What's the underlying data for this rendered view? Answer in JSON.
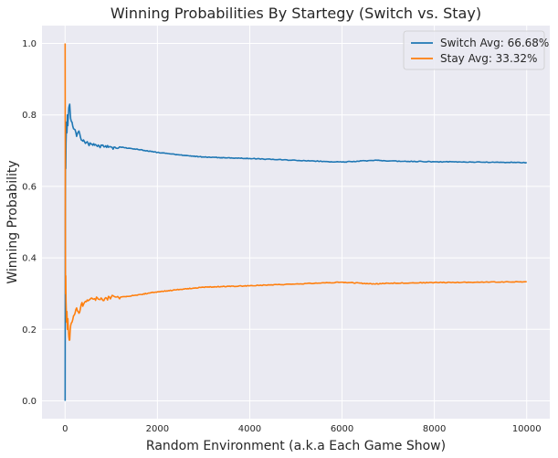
{
  "chart_data": {
    "type": "line",
    "title": "Winning Probabilities By Startegy (Switch vs. Stay)",
    "xlabel": "Random Environment (a.k.a Each Game Show)",
    "ylabel": "Winning Probability",
    "xlim": [
      -500,
      10500
    ],
    "ylim": [
      -0.05,
      1.05
    ],
    "xticks": [
      0,
      2000,
      4000,
      6000,
      8000,
      10000
    ],
    "yticks": [
      0.0,
      0.2,
      0.4,
      0.6,
      0.8,
      1.0
    ],
    "xtick_labels": [
      "0",
      "2000",
      "4000",
      "6000",
      "8000",
      "10000"
    ],
    "ytick_labels": [
      "0.0",
      "0.2",
      "0.4",
      "0.6",
      "0.8",
      "1.0"
    ],
    "grid": true,
    "legend_position": "top-right",
    "background_color": "#eaeaf2",
    "series": [
      {
        "name": "Switch Avg:  66.68%",
        "color": "#1f77b4",
        "x": [
          1,
          5,
          10,
          15,
          20,
          30,
          40,
          50,
          60,
          80,
          100,
          120,
          150,
          200,
          250,
          300,
          350,
          400,
          500,
          600,
          700,
          800,
          1000,
          1200,
          1500,
          2000,
          2500,
          3000,
          3500,
          4000,
          5000,
          6000,
          6700,
          7000,
          8000,
          9000,
          10000
        ],
        "y": [
          0.0,
          0.5,
          0.7,
          0.65,
          0.72,
          0.78,
          0.75,
          0.8,
          0.77,
          0.82,
          0.83,
          0.79,
          0.78,
          0.76,
          0.74,
          0.755,
          0.73,
          0.73,
          0.72,
          0.715,
          0.712,
          0.715,
          0.71,
          0.71,
          0.705,
          0.695,
          0.688,
          0.682,
          0.68,
          0.678,
          0.673,
          0.668,
          0.673,
          0.671,
          0.669,
          0.668,
          0.6668
        ]
      },
      {
        "name": "Stay Avg:  33.32%",
        "color": "#ff7f0e",
        "x": [
          1,
          5,
          10,
          15,
          20,
          30,
          40,
          50,
          60,
          80,
          100,
          120,
          150,
          200,
          250,
          300,
          350,
          400,
          500,
          600,
          700,
          800,
          1000,
          1200,
          1500,
          2000,
          2500,
          3000,
          3500,
          4000,
          5000,
          6000,
          6700,
          7000,
          8000,
          9000,
          10000
        ],
        "y": [
          1.0,
          0.5,
          0.3,
          0.35,
          0.28,
          0.22,
          0.25,
          0.2,
          0.23,
          0.18,
          0.17,
          0.21,
          0.22,
          0.24,
          0.26,
          0.245,
          0.27,
          0.27,
          0.28,
          0.285,
          0.288,
          0.285,
          0.29,
          0.29,
          0.295,
          0.305,
          0.312,
          0.318,
          0.32,
          0.322,
          0.327,
          0.332,
          0.327,
          0.329,
          0.331,
          0.332,
          0.3332
        ]
      }
    ]
  }
}
